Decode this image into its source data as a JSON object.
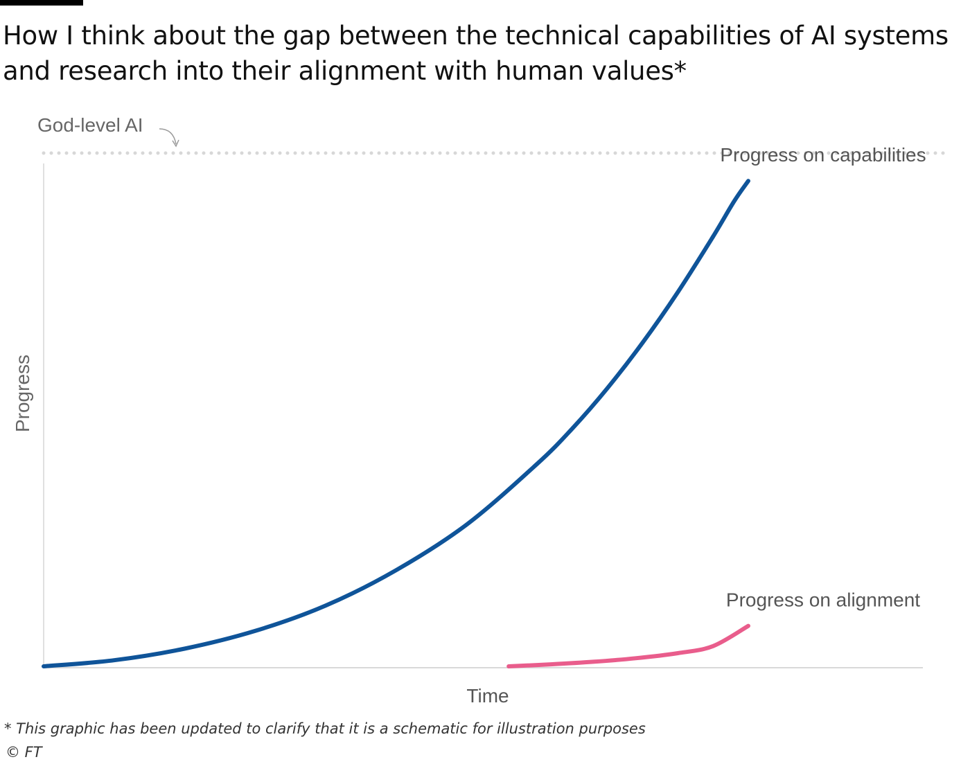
{
  "header": {
    "title": "How I think about the gap between the technical capabilities of AI systems and research into their alignment with human values*"
  },
  "footer": {
    "footnote": "* This graphic has been updated to clarify that it is a schematic for illustration purposes",
    "source": "© FT"
  },
  "chart_data": {
    "type": "line",
    "title": "How I think about the gap between the technical capabilities of AI systems and research into their alignment with human values*",
    "xlabel": "Time",
    "ylabel": "Progress",
    "xlim": [
      0,
      1
    ],
    "ylim": [
      0,
      1
    ],
    "grid": false,
    "legend": "none",
    "reference_line": {
      "label": "God-level AI",
      "y": 1.0,
      "style": "dotted",
      "color": "#d9d9d9"
    },
    "series": [
      {
        "name": "Progress on capabilities",
        "color": "#0f5499",
        "x": [
          0.0,
          0.1,
          0.2,
          0.3,
          0.4,
          0.5,
          0.6,
          0.7,
          0.75,
          0.8,
          0.85,
          0.9,
          0.95,
          0.98,
          1.0
        ],
        "values": [
          0.0,
          0.012,
          0.035,
          0.07,
          0.12,
          0.19,
          0.28,
          0.4,
          0.47,
          0.55,
          0.64,
          0.74,
          0.85,
          0.92,
          0.96
        ]
      },
      {
        "name": "Progress on alignment",
        "color": "#e95d8c",
        "x": [
          0.66,
          0.72,
          0.78,
          0.84,
          0.9,
          0.95,
          1.0
        ],
        "values": [
          0.0,
          0.004,
          0.009,
          0.016,
          0.026,
          0.04,
          0.08
        ]
      }
    ]
  }
}
